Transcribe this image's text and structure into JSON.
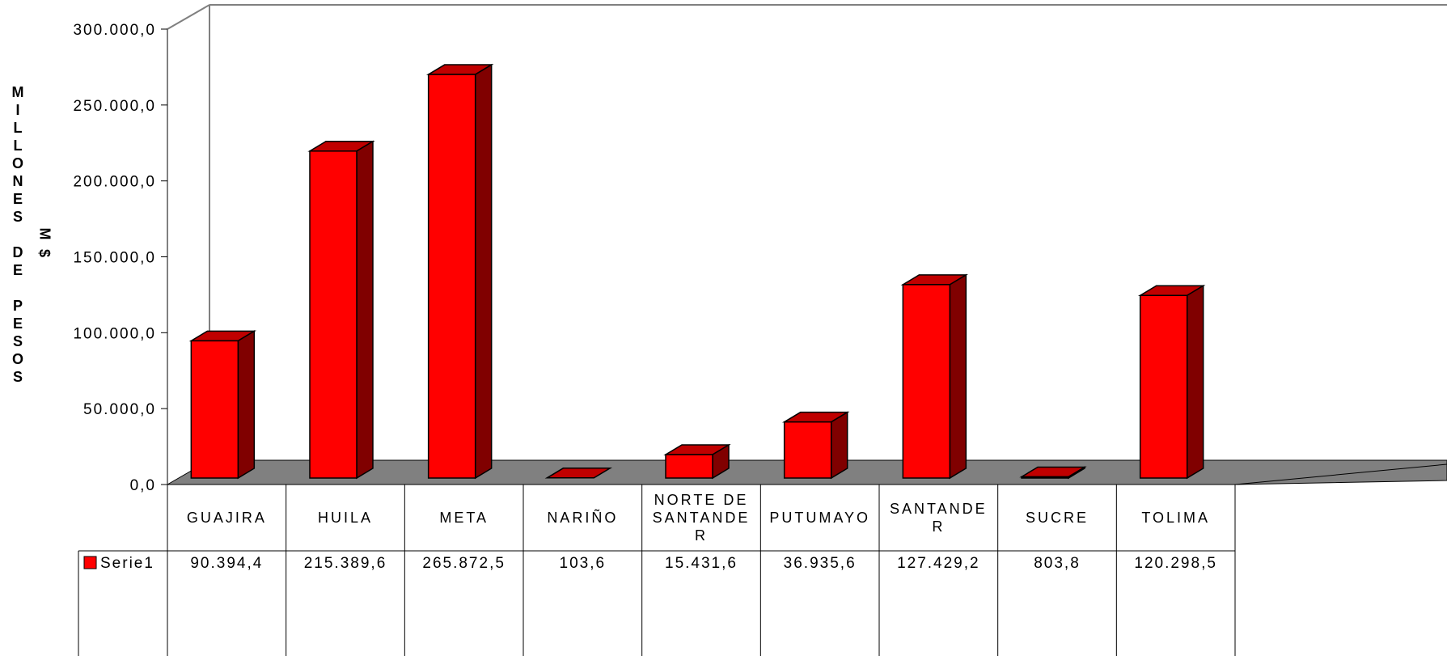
{
  "chart_data": {
    "type": "bar",
    "ylabel": "MILLONES DE PESOS (M$)",
    "ylim": [
      0,
      300000
    ],
    "y_ticks": [
      "0,0",
      "50.000,0",
      "100.000,0",
      "150.000,0",
      "200.000,0",
      "250.000,0",
      "300.000,0"
    ],
    "categories": [
      "GUAJIRA",
      "HUILA",
      "META",
      "NARIÑO",
      "NORTE DE SANTANDER",
      "PUTUMAYO",
      "SANTANDER",
      "SUCRE",
      "TOLIMA"
    ],
    "category_display": [
      [
        "GUAJIRA"
      ],
      [
        "HUILA"
      ],
      [
        "META"
      ],
      [
        "NARIÑO"
      ],
      [
        "NORTE DE",
        "SANTANDE",
        "R"
      ],
      [
        "PUTUMAYO"
      ],
      [
        "SANTANDE",
        "R"
      ],
      [
        "SUCRE"
      ],
      [
        "TOLIMA"
      ]
    ],
    "series": [
      {
        "name": "Serie1",
        "values": [
          90394.4,
          215389.6,
          265872.5,
          103.6,
          15431.6,
          36935.6,
          127429.2,
          803.8,
          120298.5
        ],
        "labels": [
          "90.394,4",
          "215.389,6",
          "265.872,5",
          "103,6",
          "15.431,6",
          "36.935,6",
          "127.429,2",
          "803,8",
          "120.298,5"
        ]
      }
    ],
    "legend": "data-table",
    "grid": false,
    "colors": {
      "bar_front": "#ff0000",
      "bar_top": "#c00000",
      "bar_side": "#800000",
      "floor": "#808080",
      "wall_line": "#808080"
    }
  }
}
